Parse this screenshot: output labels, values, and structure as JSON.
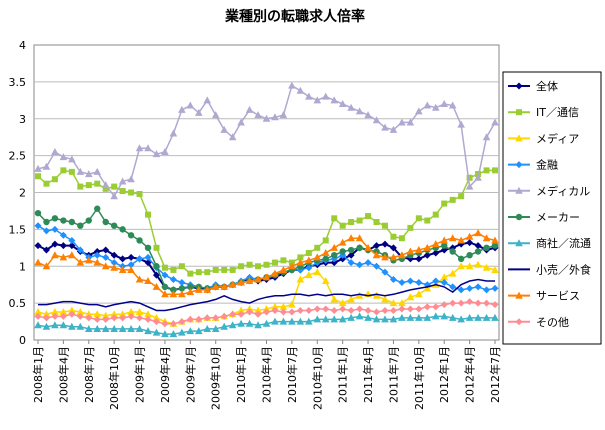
{
  "chart_data": {
    "type": "line",
    "title": "業種別の転職求人倍率",
    "xlabel": "",
    "ylabel": "",
    "ylim": [
      0,
      4
    ],
    "yticks": [
      0,
      0.5,
      1,
      1.5,
      2,
      2.5,
      3,
      3.5,
      4
    ],
    "ytick_labels": [
      "0",
      "0.5",
      "1",
      "1.5",
      "2",
      "2.5",
      "3",
      "3.5",
      "4"
    ],
    "grid": "horizontal",
    "legend": "right",
    "x": [
      "2008-01",
      "2008-02",
      "2008-03",
      "2008-04",
      "2008-05",
      "2008-06",
      "2008-07",
      "2008-08",
      "2008-09",
      "2008-10",
      "2008-11",
      "2008-12",
      "2009-01",
      "2009-02",
      "2009-03",
      "2009-04",
      "2009-05",
      "2009-06",
      "2009-07",
      "2009-08",
      "2009-09",
      "2009-10",
      "2009-11",
      "2009-12",
      "2010-01",
      "2010-02",
      "2010-03",
      "2010-04",
      "2010-05",
      "2010-06",
      "2010-07",
      "2010-08",
      "2010-09",
      "2010-10",
      "2010-11",
      "2010-12",
      "2011-01",
      "2011-02",
      "2011-03",
      "2011-04",
      "2011-05",
      "2011-06",
      "2011-07",
      "2011-08",
      "2011-09",
      "2011-10",
      "2011-11",
      "2011-12",
      "2012-01",
      "2012-02",
      "2012-03",
      "2012-04",
      "2012-05",
      "2012-06",
      "2012-07"
    ],
    "x_tick_labels": [
      "2008年1月",
      "2008年4月",
      "2008年7月",
      "2008年10月",
      "2009年1月",
      "2009年4月",
      "2009年7月",
      "2009年10月",
      "2010年1月",
      "2010年4月",
      "2010年7月",
      "2010年10月",
      "2011年1月",
      "2011年4月",
      "2011年7月",
      "2011年10月",
      "2012年1月",
      "2012年4月",
      "2012年7月"
    ],
    "series": [
      {
        "name": "全体",
        "color": "#000080",
        "marker": "diamond",
        "values": [
          1.28,
          1.22,
          1.3,
          1.28,
          1.28,
          1.2,
          1.15,
          1.2,
          1.22,
          1.15,
          1.1,
          1.12,
          1.1,
          1.05,
          0.88,
          0.72,
          0.68,
          0.7,
          0.72,
          0.7,
          0.68,
          0.72,
          0.72,
          0.75,
          0.78,
          0.82,
          0.8,
          0.82,
          0.85,
          0.9,
          0.95,
          0.95,
          1.0,
          1.02,
          1.05,
          1.05,
          1.1,
          1.15,
          1.25,
          1.22,
          1.28,
          1.3,
          1.25,
          1.12,
          1.1,
          1.1,
          1.15,
          1.18,
          1.22,
          1.25,
          1.3,
          1.32,
          1.28,
          1.22,
          1.25
        ]
      },
      {
        "name": "IT／通信",
        "color": "#9ACD32",
        "marker": "square",
        "values": [
          2.22,
          2.12,
          2.18,
          2.3,
          2.28,
          2.08,
          2.1,
          2.12,
          2.05,
          2.08,
          2.02,
          2.0,
          1.98,
          1.7,
          1.25,
          0.98,
          0.95,
          1.0,
          0.9,
          0.92,
          0.92,
          0.95,
          0.95,
          0.95,
          1.0,
          1.02,
          1.0,
          1.02,
          1.05,
          1.08,
          1.05,
          1.12,
          1.18,
          1.25,
          1.35,
          1.65,
          1.55,
          1.6,
          1.62,
          1.68,
          1.6,
          1.55,
          1.4,
          1.38,
          1.52,
          1.65,
          1.62,
          1.7,
          1.85,
          1.9,
          1.95,
          2.2,
          2.25,
          2.3,
          2.3
        ]
      },
      {
        "name": "メディア",
        "color": "#FFD700",
        "marker": "triangle",
        "values": [
          0.38,
          0.35,
          0.38,
          0.38,
          0.4,
          0.38,
          0.35,
          0.35,
          0.33,
          0.35,
          0.35,
          0.38,
          0.38,
          0.35,
          0.3,
          0.25,
          0.22,
          0.25,
          0.28,
          0.28,
          0.3,
          0.3,
          0.32,
          0.35,
          0.4,
          0.42,
          0.4,
          0.42,
          0.45,
          0.45,
          0.48,
          0.82,
          0.88,
          0.92,
          0.8,
          0.55,
          0.5,
          0.55,
          0.6,
          0.62,
          0.6,
          0.55,
          0.5,
          0.5,
          0.58,
          0.62,
          0.7,
          0.75,
          0.85,
          0.9,
          1.0,
          1.0,
          1.02,
          0.98,
          0.95
        ]
      },
      {
        "name": "金融",
        "color": "#1E90FF",
        "marker": "diamond",
        "values": [
          1.55,
          1.48,
          1.5,
          1.42,
          1.35,
          1.22,
          1.12,
          1.15,
          1.12,
          1.05,
          1.0,
          1.02,
          1.1,
          1.12,
          0.98,
          0.88,
          0.82,
          0.78,
          0.75,
          0.72,
          0.7,
          0.75,
          0.72,
          0.75,
          0.8,
          0.85,
          0.82,
          0.85,
          0.88,
          0.92,
          0.95,
          0.95,
          0.98,
          1.05,
          1.08,
          1.1,
          1.15,
          1.05,
          1.02,
          1.05,
          1.0,
          0.92,
          0.82,
          0.78,
          0.8,
          0.78,
          0.75,
          0.8,
          0.78,
          0.72,
          0.68,
          0.7,
          0.72,
          0.68,
          0.7
        ]
      },
      {
        "name": "メディカル",
        "color": "#B0A8D0",
        "marker": "triangle",
        "values": [
          2.32,
          2.35,
          2.55,
          2.48,
          2.45,
          2.28,
          2.25,
          2.28,
          2.1,
          1.95,
          2.15,
          2.18,
          2.6,
          2.6,
          2.52,
          2.55,
          2.8,
          3.12,
          3.18,
          3.08,
          3.25,
          3.05,
          2.85,
          2.75,
          2.95,
          3.12,
          3.05,
          3.0,
          3.02,
          3.05,
          3.45,
          3.38,
          3.3,
          3.25,
          3.3,
          3.25,
          3.2,
          3.15,
          3.1,
          3.05,
          2.98,
          2.88,
          2.85,
          2.95,
          2.95,
          3.1,
          3.18,
          3.15,
          3.2,
          3.18,
          2.92,
          2.08,
          2.2,
          2.75,
          2.95
        ]
      },
      {
        "name": "メーカー",
        "color": "#2E8B57",
        "marker": "circle",
        "values": [
          1.72,
          1.6,
          1.65,
          1.62,
          1.6,
          1.55,
          1.62,
          1.78,
          1.6,
          1.55,
          1.5,
          1.42,
          1.35,
          1.25,
          1.0,
          0.72,
          0.68,
          0.7,
          0.72,
          0.72,
          0.7,
          0.72,
          0.72,
          0.75,
          0.78,
          0.8,
          0.82,
          0.85,
          0.88,
          0.92,
          0.95,
          1.0,
          1.05,
          1.08,
          1.1,
          1.15,
          1.2,
          1.22,
          1.25,
          1.22,
          1.2,
          1.15,
          1.08,
          1.1,
          1.15,
          1.18,
          1.22,
          1.25,
          1.28,
          1.2,
          1.1,
          1.15,
          1.2,
          1.25,
          1.28
        ]
      },
      {
        "name": "商社／流通",
        "color": "#3CB3C8",
        "marker": "triangle",
        "values": [
          0.2,
          0.18,
          0.2,
          0.2,
          0.18,
          0.18,
          0.15,
          0.15,
          0.15,
          0.15,
          0.15,
          0.15,
          0.15,
          0.12,
          0.1,
          0.08,
          0.08,
          0.1,
          0.12,
          0.12,
          0.15,
          0.15,
          0.18,
          0.2,
          0.22,
          0.22,
          0.2,
          0.22,
          0.25,
          0.25,
          0.25,
          0.25,
          0.25,
          0.28,
          0.28,
          0.28,
          0.28,
          0.3,
          0.32,
          0.3,
          0.28,
          0.28,
          0.28,
          0.3,
          0.3,
          0.3,
          0.3,
          0.32,
          0.32,
          0.3,
          0.28,
          0.3,
          0.3,
          0.3,
          0.3
        ]
      },
      {
        "name": "小売／外食",
        "color": "#00008B",
        "marker": "line",
        "values": [
          0.48,
          0.48,
          0.5,
          0.52,
          0.52,
          0.5,
          0.48,
          0.48,
          0.45,
          0.48,
          0.5,
          0.52,
          0.5,
          0.45,
          0.4,
          0.4,
          0.42,
          0.45,
          0.48,
          0.5,
          0.52,
          0.55,
          0.6,
          0.55,
          0.52,
          0.5,
          0.55,
          0.58,
          0.6,
          0.6,
          0.62,
          0.62,
          0.6,
          0.62,
          0.6,
          0.62,
          0.62,
          0.6,
          0.62,
          0.6,
          0.62,
          0.6,
          0.62,
          0.65,
          0.68,
          0.7,
          0.72,
          0.75,
          0.72,
          0.65,
          0.75,
          0.8,
          0.82,
          0.8,
          0.8
        ]
      },
      {
        "name": "サービス",
        "color": "#FF7F00",
        "marker": "triangle",
        "values": [
          1.05,
          1.0,
          1.15,
          1.12,
          1.15,
          1.05,
          1.08,
          1.05,
          1.0,
          0.98,
          0.95,
          0.95,
          0.82,
          0.8,
          0.72,
          0.62,
          0.62,
          0.62,
          0.65,
          0.68,
          0.68,
          0.72,
          0.72,
          0.75,
          0.78,
          0.8,
          0.82,
          0.85,
          0.9,
          0.95,
          1.0,
          1.05,
          1.08,
          1.12,
          1.18,
          1.25,
          1.32,
          1.38,
          1.38,
          1.25,
          1.15,
          1.12,
          1.12,
          1.15,
          1.2,
          1.22,
          1.25,
          1.3,
          1.35,
          1.38,
          1.35,
          1.4,
          1.45,
          1.38,
          1.35
        ]
      },
      {
        "name": "その他",
        "color": "#FF8C94",
        "marker": "diamond",
        "values": [
          0.32,
          0.3,
          0.32,
          0.32,
          0.35,
          0.32,
          0.3,
          0.28,
          0.28,
          0.3,
          0.3,
          0.32,
          0.3,
          0.28,
          0.25,
          0.22,
          0.22,
          0.25,
          0.28,
          0.28,
          0.3,
          0.3,
          0.32,
          0.35,
          0.35,
          0.38,
          0.35,
          0.38,
          0.4,
          0.38,
          0.38,
          0.4,
          0.4,
          0.42,
          0.42,
          0.4,
          0.42,
          0.4,
          0.42,
          0.4,
          0.38,
          0.4,
          0.4,
          0.42,
          0.42,
          0.42,
          0.45,
          0.45,
          0.48,
          0.5,
          0.5,
          0.52,
          0.5,
          0.5,
          0.48
        ]
      }
    ]
  }
}
